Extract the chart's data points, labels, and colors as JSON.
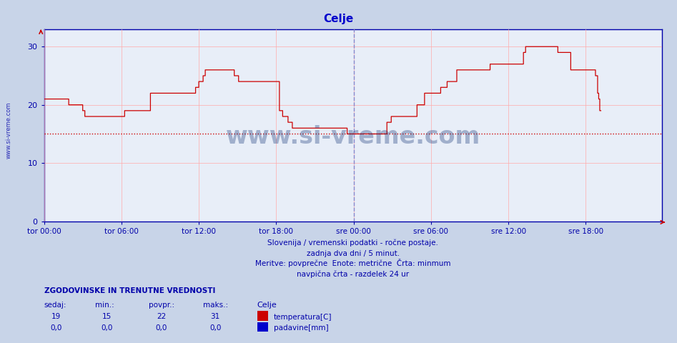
{
  "title": "Celje",
  "title_color": "#0000cc",
  "bg_color": "#c8d4e8",
  "plot_bg_color": "#e8eef8",
  "grid_color": "#ffaaaa",
  "line_color": "#cc0000",
  "min_line_color": "#cc0000",
  "min_line_value": 15,
  "vline_color": "#8888cc",
  "vline_x": 288,
  "xlim": [
    0,
    575
  ],
  "ylim": [
    0,
    33
  ],
  "yticks": [
    0,
    10,
    20,
    30
  ],
  "xtick_labels": [
    "tor 00:00",
    "tor 06:00",
    "tor 12:00",
    "tor 18:00",
    "sre 00:00",
    "sre 06:00",
    "sre 12:00",
    "sre 18:00"
  ],
  "xtick_positions": [
    0,
    72,
    144,
    216,
    288,
    360,
    432,
    504
  ],
  "subtitle1": "Slovenija / vremenski podatki - ročne postaje.",
  "subtitle2": "zadnja dva dni / 5 minut.",
  "subtitle3": "Meritve: povprečne  Enote: metrične  Črta: minmum",
  "subtitle4": "navpična črta - razdelek 24 ur",
  "text_color": "#0000aa",
  "stats_title": "ZGODOVINSKE IN TRENUTNE VREDNOSTI",
  "stats_headers": [
    "sedaj:",
    "min.:",
    "povpr.:",
    "maks.:"
  ],
  "stats_temp": [
    "19",
    "15",
    "22",
    "31"
  ],
  "stats_rain": [
    "0,0",
    "0,0",
    "0,0",
    "0,0"
  ],
  "legend_label": "Celje",
  "legend_temp": "temperatura[C]",
  "legend_rain": "padavine[mm]",
  "legend_temp_color": "#cc0000",
  "legend_rain_color": "#0000cc",
  "watermark": "www.si-vreme.com",
  "watermark_color": "#1a3a7a",
  "arrow_color": "#cc0000",
  "spine_color": "#0000aa",
  "temp_data": [
    21,
    21,
    21,
    21,
    21,
    21,
    21,
    21,
    21,
    21,
    21,
    21,
    21,
    21,
    21,
    21,
    21,
    21,
    21,
    21,
    21,
    21,
    21,
    20,
    20,
    20,
    20,
    20,
    20,
    20,
    20,
    20,
    20,
    20,
    20,
    20,
    19,
    19,
    18,
    18,
    18,
    18,
    18,
    18,
    18,
    18,
    18,
    18,
    18,
    18,
    18,
    18,
    18,
    18,
    18,
    18,
    18,
    18,
    18,
    18,
    18,
    18,
    18,
    18,
    18,
    18,
    18,
    18,
    18,
    18,
    18,
    18,
    18,
    18,
    18,
    19,
    19,
    19,
    19,
    19,
    19,
    19,
    19,
    19,
    19,
    19,
    19,
    19,
    19,
    19,
    19,
    19,
    19,
    19,
    19,
    19,
    19,
    19,
    19,
    22,
    22,
    22,
    22,
    22,
    22,
    22,
    22,
    22,
    22,
    22,
    22,
    22,
    22,
    22,
    22,
    22,
    22,
    22,
    22,
    22,
    22,
    22,
    22,
    22,
    22,
    22,
    22,
    22,
    22,
    22,
    22,
    22,
    22,
    22,
    22,
    22,
    22,
    22,
    22,
    22,
    22,
    23,
    23,
    23,
    24,
    24,
    24,
    24,
    25,
    25,
    26,
    26,
    26,
    26,
    26,
    26,
    26,
    26,
    26,
    26,
    26,
    26,
    26,
    26,
    26,
    26,
    26,
    26,
    26,
    26,
    26,
    26,
    26,
    26,
    26,
    26,
    26,
    25,
    25,
    25,
    25,
    24,
    24,
    24,
    24,
    24,
    24,
    24,
    24,
    24,
    24,
    24,
    24,
    24,
    24,
    24,
    24,
    24,
    24,
    24,
    24,
    24,
    24,
    24,
    24,
    24,
    24,
    24,
    24,
    24,
    24,
    24,
    24,
    24,
    24,
    24,
    24,
    24,
    24,
    19,
    19,
    19,
    18,
    18,
    18,
    18,
    18,
    17,
    17,
    17,
    17,
    16,
    16,
    16,
    16,
    16,
    16,
    16,
    16,
    16,
    16,
    16,
    16,
    16,
    16,
    16,
    16,
    16,
    16,
    16,
    16,
    16,
    16,
    16,
    16,
    16,
    16,
    16,
    16,
    16,
    16,
    16,
    16,
    16,
    16,
    16,
    16,
    16,
    16,
    16,
    16,
    16,
    16,
    16,
    16,
    16,
    16,
    16,
    16,
    16,
    16,
    16,
    15,
    15,
    15,
    15,
    15,
    15,
    15,
    15,
    15,
    15,
    15,
    15,
    15,
    15,
    15,
    15,
    15,
    15,
    15,
    15,
    15,
    15,
    15,
    15,
    15,
    15,
    15,
    15,
    15,
    15,
    15,
    15,
    15,
    15,
    15,
    15,
    15,
    17,
    17,
    17,
    17,
    18,
    18,
    18,
    18,
    18,
    18,
    18,
    18,
    18,
    18,
    18,
    18,
    18,
    18,
    18,
    18,
    18,
    18,
    18,
    18,
    18,
    18,
    18,
    18,
    20,
    20,
    20,
    20,
    20,
    20,
    20,
    22,
    22,
    22,
    22,
    22,
    22,
    22,
    22,
    22,
    22,
    22,
    22,
    22,
    22,
    22,
    23,
    23,
    23,
    23,
    23,
    23,
    24,
    24,
    24,
    24,
    24,
    24,
    24,
    24,
    24,
    26,
    26,
    26,
    26,
    26,
    26,
    26,
    26,
    26,
    26,
    26,
    26,
    26,
    26,
    26,
    26,
    26,
    26,
    26,
    26,
    26,
    26,
    26,
    26,
    26,
    26,
    26,
    26,
    26,
    26,
    26,
    27,
    27,
    27,
    27,
    27,
    27,
    27,
    27,
    27,
    27,
    27,
    27,
    27,
    27,
    27,
    27,
    27,
    27,
    27,
    27,
    27,
    27,
    27,
    27,
    27,
    27,
    27,
    27,
    27,
    27,
    27,
    29,
    29,
    30,
    30,
    30,
    30,
    30,
    30,
    30,
    30,
    30,
    30,
    30,
    30,
    30,
    30,
    30,
    30,
    30,
    30,
    30,
    30,
    30,
    30,
    30,
    30,
    30,
    30,
    30,
    30,
    30,
    30,
    29,
    29,
    29,
    29,
    29,
    29,
    29,
    29,
    29,
    29,
    29,
    29,
    26,
    26,
    26,
    26,
    26,
    26,
    26,
    26,
    26,
    26,
    26,
    26,
    26,
    26,
    26,
    26,
    26,
    26,
    26,
    26,
    26,
    26,
    26,
    25,
    25,
    22,
    21,
    19,
    19
  ]
}
